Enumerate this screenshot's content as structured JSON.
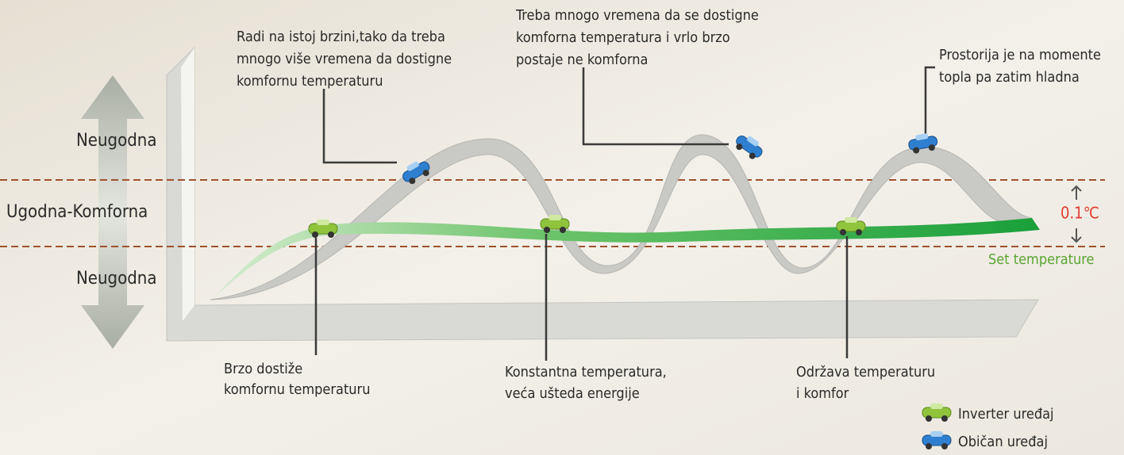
{
  "zones": {
    "upper": "Neugodna",
    "middle": "Ugodna-Komforna",
    "lower": "Neugodna"
  },
  "callouts_top": [
    {
      "lines": [
        "Radi na istoj brzini,tako da treba",
        "mnogo više vremena da dostigne",
        "komfornu temperaturu"
      ]
    },
    {
      "lines": [
        "Treba mnogo vremena da  se dostigne",
        "komforna temperatura i vrlo brzo",
        "postaje ne komforna"
      ]
    },
    {
      "lines": [
        "Prostorija je na momente",
        "topla pa zatim hladna"
      ]
    }
  ],
  "callouts_bottom": [
    {
      "lines": [
        "Brzo dostiže",
        "komfornu temperaturu"
      ]
    },
    {
      "lines": [
        "Konstantna temperatura,",
        "veća ušteda energije"
      ]
    },
    {
      "lines": [
        "Održava temperaturu",
        "i komfor"
      ]
    }
  ],
  "tolerance": "0.1℃",
  "set_temperature": "Set temperature",
  "legend": [
    "Inverter uređaj",
    "Običan uređaj"
  ]
}
